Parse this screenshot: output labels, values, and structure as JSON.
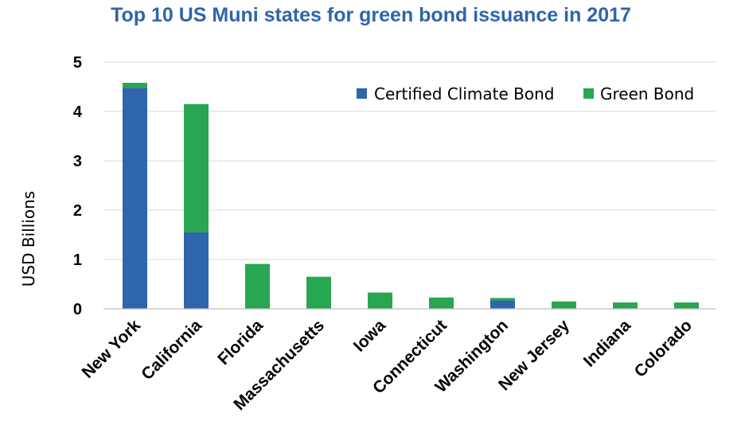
{
  "chart_data": {
    "type": "bar",
    "stacked": true,
    "title": "Top 10 US Muni states for green bond issuance in 2017",
    "xlabel": "",
    "ylabel": "USD Billions",
    "ylim": [
      0,
      5
    ],
    "yticks": [
      "0",
      "1",
      "2",
      "3",
      "4",
      "5"
    ],
    "grid": true,
    "legend_position": "top-right",
    "categories": [
      "New York",
      "California",
      "Florida",
      "Massachusetts",
      "Iowa",
      "Connecticut",
      "Washington",
      "New Jersey",
      "Indiana",
      "Colorado"
    ],
    "series": [
      {
        "name": "Certified Climate Bond",
        "color": "#2E65AB",
        "values": [
          4.48,
          1.55,
          0,
          0,
          0,
          0,
          0.17,
          0,
          0,
          0
        ]
      },
      {
        "name": "Green Bond",
        "color": "#28A652",
        "values": [
          0.1,
          2.6,
          0.91,
          0.65,
          0.33,
          0.23,
          0.05,
          0.15,
          0.13,
          0.13
        ]
      }
    ],
    "title_color": "#2E65AB",
    "grid_color": "#D9D9D9",
    "axis_color": "#BFBFBF"
  }
}
